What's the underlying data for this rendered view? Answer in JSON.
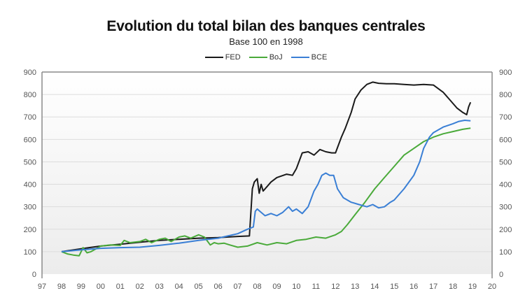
{
  "chart_data": {
    "type": "line",
    "title": "Evolution du total bilan des banques centrales",
    "subtitle": "Base 100 en 1998",
    "xlabel": "",
    "ylabel": "",
    "xlim": [
      1997,
      2020
    ],
    "ylim": [
      0,
      900
    ],
    "grid": true,
    "legend_position": "top",
    "x_tick_labels": [
      "97",
      "98",
      "99",
      "00",
      "01",
      "02",
      "03",
      "04",
      "05",
      "06",
      "07",
      "08",
      "09",
      "10",
      "11",
      "12",
      "13",
      "14",
      "15",
      "16",
      "17",
      "18",
      "19",
      "20"
    ],
    "y_tick_labels": [
      "0",
      "100",
      "200",
      "300",
      "400",
      "500",
      "600",
      "700",
      "800",
      "900"
    ],
    "secondary_y_tick_labels": [
      "0",
      "100",
      "200",
      "300",
      "400",
      "500",
      "600",
      "700",
      "800",
      "900"
    ],
    "series": [
      {
        "name": "FED",
        "color": "#1a1a1a",
        "x": [
          1998.0,
          1999.0,
          2000.0,
          2001.0,
          2002.0,
          2003.0,
          2004.0,
          2005.0,
          2006.0,
          2007.0,
          2007.6,
          2007.75,
          2007.85,
          2008.0,
          2008.1,
          2008.2,
          2008.3,
          2008.5,
          2008.7,
          2009.0,
          2009.5,
          2009.8,
          2010.0,
          2010.3,
          2010.6,
          2010.9,
          2011.2,
          2011.5,
          2011.8,
          2012.0,
          2012.3,
          2012.5,
          2012.8,
          2013.0,
          2013.3,
          2013.6,
          2013.9,
          2014.2,
          2014.6,
          2015.0,
          2015.5,
          2016.0,
          2016.5,
          2017.0,
          2017.5,
          2017.8,
          2018.2,
          2018.5,
          2018.7,
          2018.8,
          2018.9
        ],
        "values": [
          100,
          113,
          125,
          133,
          142,
          150,
          155,
          160,
          163,
          168,
          170,
          380,
          410,
          425,
          360,
          400,
          370,
          390,
          410,
          430,
          445,
          440,
          470,
          540,
          545,
          530,
          555,
          545,
          540,
          540,
          610,
          650,
          720,
          780,
          820,
          845,
          855,
          850,
          848,
          848,
          845,
          842,
          845,
          842,
          810,
          780,
          740,
          720,
          710,
          745,
          765
        ]
      },
      {
        "name": "BoJ",
        "color": "#4aaa3a",
        "x": [
          1998.0,
          1998.3,
          1998.6,
          1998.9,
          1999.1,
          1999.3,
          1999.5,
          1999.8,
          2000.0,
          2000.5,
          2001.0,
          2001.2,
          2001.5,
          2002.0,
          2002.3,
          2002.6,
          2003.0,
          2003.3,
          2003.6,
          2004.0,
          2004.3,
          2004.6,
          2005.0,
          2005.3,
          2005.6,
          2005.8,
          2006.0,
          2006.3,
          2006.6,
          2007.0,
          2007.5,
          2008.0,
          2008.5,
          2009.0,
          2009.5,
          2010.0,
          2010.5,
          2011.0,
          2011.5,
          2012.0,
          2012.3,
          2012.6,
          2013.0,
          2013.5,
          2014.0,
          2014.5,
          2015.0,
          2015.5,
          2016.0,
          2016.5,
          2017.0,
          2017.5,
          2018.0,
          2018.5,
          2018.9
        ],
        "values": [
          100,
          90,
          85,
          82,
          118,
          95,
          100,
          115,
          125,
          130,
          128,
          150,
          140,
          145,
          155,
          140,
          155,
          160,
          145,
          165,
          170,
          160,
          175,
          165,
          130,
          140,
          135,
          138,
          130,
          120,
          125,
          140,
          130,
          140,
          135,
          150,
          155,
          165,
          160,
          175,
          190,
          220,
          265,
          320,
          380,
          430,
          480,
          530,
          560,
          590,
          610,
          625,
          635,
          645,
          650
        ]
      },
      {
        "name": "BCE",
        "color": "#3a7fd5",
        "x": [
          1998.0,
          1999.0,
          2000.0,
          2001.0,
          2002.0,
          2003.0,
          2004.0,
          2005.0,
          2006.0,
          2006.5,
          2007.0,
          2007.5,
          2007.8,
          2007.9,
          2008.0,
          2008.2,
          2008.4,
          2008.7,
          2009.0,
          2009.3,
          2009.6,
          2009.8,
          2010.0,
          2010.3,
          2010.6,
          2010.9,
          2011.1,
          2011.3,
          2011.5,
          2011.7,
          2011.9,
          2012.1,
          2012.4,
          2012.8,
          2013.2,
          2013.6,
          2013.9,
          2014.2,
          2014.5,
          2014.8,
          2015.0,
          2015.5,
          2016.0,
          2016.3,
          2016.5,
          2016.8,
          2017.0,
          2017.5,
          2018.0,
          2018.3,
          2018.6,
          2018.9
        ],
        "values": [
          100,
          108,
          115,
          118,
          120,
          128,
          138,
          150,
          160,
          170,
          180,
          200,
          210,
          280,
          290,
          275,
          260,
          270,
          260,
          275,
          300,
          280,
          290,
          270,
          300,
          370,
          400,
          440,
          450,
          440,
          440,
          380,
          340,
          320,
          310,
          300,
          310,
          295,
          300,
          320,
          330,
          380,
          440,
          500,
          560,
          610,
          630,
          655,
          670,
          680,
          685,
          683
        ]
      }
    ]
  }
}
